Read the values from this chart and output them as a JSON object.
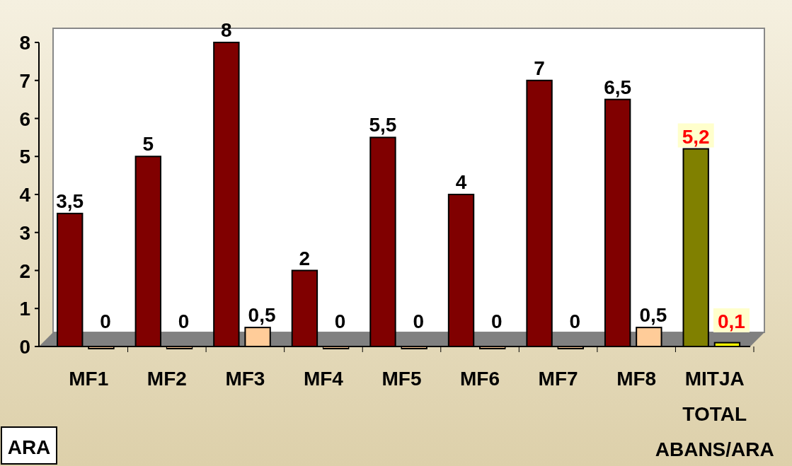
{
  "chart_data": {
    "type": "bar",
    "categories": [
      "MF1",
      "MF2",
      "MF3",
      "MF4",
      "MF5",
      "MF6",
      "MF7",
      "MF8",
      "MITJA TOTAL ABANS/ARA"
    ],
    "series": [
      {
        "colors": [
          "#800000",
          "#800000",
          "#800000",
          "#800000",
          "#800000",
          "#800000",
          "#800000",
          "#800000",
          "#808000"
        ],
        "values": [
          3.5,
          5,
          8,
          2,
          5.5,
          4,
          7,
          6.5,
          5.2
        ],
        "value_labels": [
          "3,5",
          "5",
          "8",
          "2",
          "5,5",
          "4",
          "7",
          "6,5",
          "5,2"
        ]
      },
      {
        "colors": [
          "#ffcc99",
          "#ffcc99",
          "#ffcc99",
          "#ffcc99",
          "#ffcc99",
          "#ffcc99",
          "#ffcc99",
          "#ffcc99",
          "#ffff00"
        ],
        "values": [
          0,
          0,
          0.5,
          0,
          0,
          0,
          0,
          0.5,
          0.1
        ],
        "value_labels": [
          "0",
          "0",
          "0,5",
          "0",
          "0",
          "0",
          "0",
          "0,5",
          "0,1"
        ]
      }
    ],
    "ylim": [
      0,
      8
    ],
    "yticks": [
      0,
      1,
      2,
      3,
      4,
      5,
      6,
      7,
      8
    ],
    "grid": false,
    "annotations": [
      "ARA"
    ]
  }
}
